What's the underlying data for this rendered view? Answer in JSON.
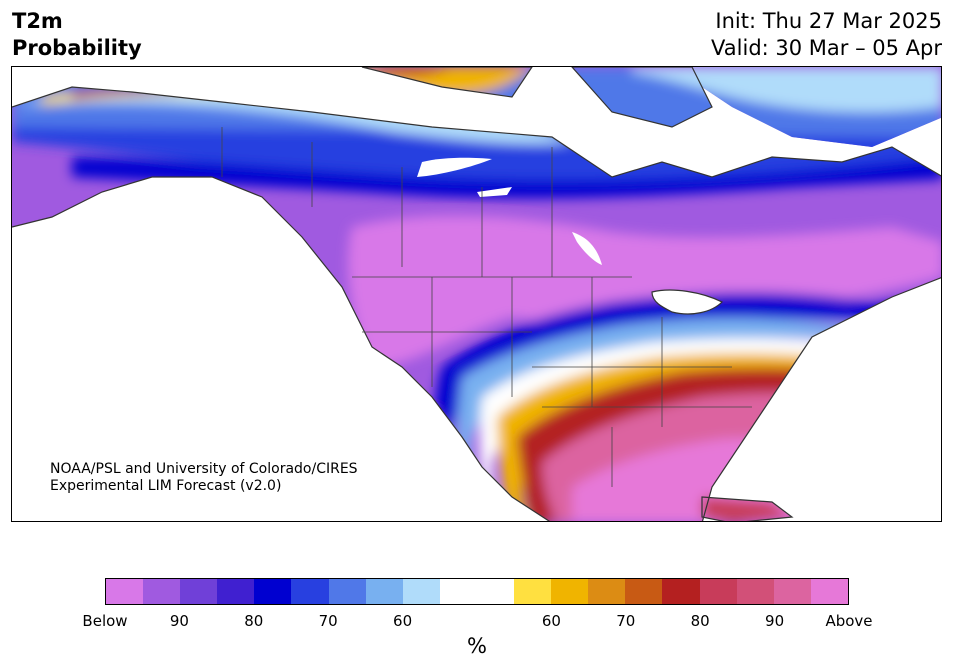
{
  "title": {
    "left_line1": "T2m",
    "left_line2": "Probability",
    "init": "Init: Thu 27 Mar 2025",
    "valid": "Valid: 30 Mar – 05 Apr"
  },
  "credit": {
    "line1": "NOAA/PSL and University of Colorado/CIRES",
    "line2": "Experimental LIM Forecast (v2.0)"
  },
  "colorbar": {
    "unit": "%",
    "colors": [
      "#d878e8",
      "#a05ae0",
      "#7040d8",
      "#4020d0",
      "#0000d0",
      "#2840e0",
      "#5078e8",
      "#78b0f0",
      "#b0dcfa",
      "#ffffff",
      "#ffffff",
      "#ffe040",
      "#f0b400",
      "#dc8c14",
      "#c85a14",
      "#b42020",
      "#c83c5a",
      "#d25078",
      "#dc64a0",
      "#e678d8"
    ],
    "ticks": [
      "Below",
      "90",
      "80",
      "70",
      "60",
      "60",
      "70",
      "80",
      "90",
      "Above"
    ]
  },
  "colors": {
    "cold_extreme": "#d878e8",
    "cold_strong": "#7040d8",
    "cold_core": "#0000d0",
    "warm_core": "#b42020",
    "warm_extreme": "#e678d8"
  }
}
